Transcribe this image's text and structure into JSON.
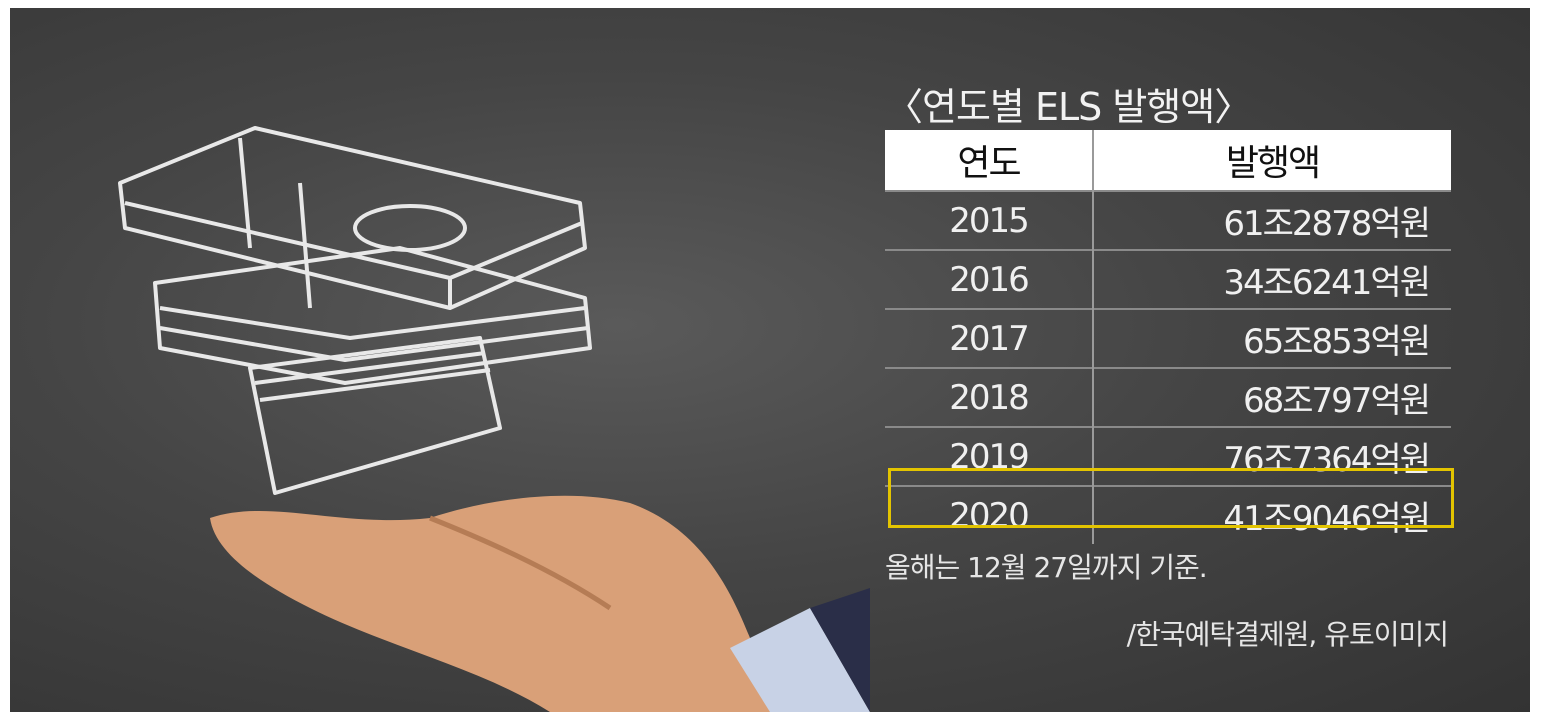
{
  "chart_data": {
    "type": "table",
    "title": "〈연도별 ELS 발행액〉",
    "columns": [
      "연도",
      "발행액"
    ],
    "rows": [
      [
        "2015",
        "61조2878억원"
      ],
      [
        "2016",
        "34조6241억원"
      ],
      [
        "2017",
        "65조853억원"
      ],
      [
        "2018",
        "68조797억원"
      ],
      [
        "2019",
        "76조7364억원"
      ],
      [
        "2020",
        "41조9046억원"
      ]
    ],
    "highlighted_row": "2020",
    "highlight_color": "#e3c400",
    "note": "올해는 12월 27일까지 기준.",
    "source": "/한국예탁결제원, 유토이미지"
  }
}
